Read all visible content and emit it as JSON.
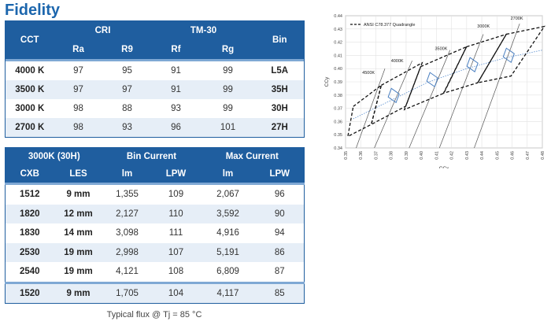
{
  "title": "Fidelity",
  "fidelity_table": {
    "head1": {
      "cct": "CCT",
      "cri": "CRI",
      "tm30": "TM-30",
      "bin": "Bin"
    },
    "head2": [
      "Ra",
      "R9",
      "Rf",
      "Rg"
    ],
    "rows": [
      {
        "cct": "4000 K",
        "ra": "97",
        "r9": "95",
        "rf": "91",
        "rg": "99",
        "bin": "L5A"
      },
      {
        "cct": "3500 K",
        "ra": "97",
        "r9": "97",
        "rf": "91",
        "rg": "99",
        "bin": "35H"
      },
      {
        "cct": "3000 K",
        "ra": "98",
        "r9": "88",
        "rf": "93",
        "rg": "99",
        "bin": "30H"
      },
      {
        "cct": "2700 K",
        "ra": "98",
        "r9": "93",
        "rf": "96",
        "rg": "101",
        "bin": "27H"
      }
    ]
  },
  "flux_table": {
    "head1": {
      "group": "3000K (30H)",
      "bin_current": "Bin Current",
      "max_current": "Max Current"
    },
    "head2": [
      "CXB",
      "LES",
      "lm",
      "LPW",
      "lm",
      "LPW"
    ],
    "rows": [
      {
        "cxb": "1512",
        "les": "9 mm",
        "bin_lm": "1,355",
        "bin_lpw": "109",
        "max_lm": "2,067",
        "max_lpw": "96"
      },
      {
        "cxb": "1820",
        "les": "12 mm",
        "bin_lm": "2,127",
        "bin_lpw": "110",
        "max_lm": "3,592",
        "max_lpw": "90"
      },
      {
        "cxb": "1830",
        "les": "14 mm",
        "bin_lm": "3,098",
        "bin_lpw": "111",
        "max_lm": "4,916",
        "max_lpw": "94"
      },
      {
        "cxb": "2530",
        "les": "19 mm",
        "bin_lm": "2,998",
        "bin_lpw": "107",
        "max_lm": "5,191",
        "max_lpw": "86"
      },
      {
        "cxb": "2540",
        "les": "19 mm",
        "bin_lm": "4,121",
        "bin_lpw": "108",
        "max_lm": "6,809",
        "max_lpw": "87"
      },
      {
        "cxb": "1520",
        "les": "9 mm",
        "bin_lm": "1,705",
        "bin_lpw": "104",
        "max_lm": "4,117",
        "max_lpw": "85"
      }
    ]
  },
  "footnote": "Typical flux @ Tj = 85 °C",
  "colors": {
    "header_bg": "#1f5e9f",
    "title": "#1c66ad",
    "row_alt": "#e6eef7",
    "bin_outline": "#4a7fc0"
  },
  "chart_data": {
    "type": "scatter",
    "xlabel": "CCx",
    "ylabel": "CCy",
    "xlim": [
      0.35,
      0.48
    ],
    "ylim": [
      0.34,
      0.44
    ],
    "xticks": [
      "0.35",
      "0.36",
      "0.37",
      "0.38",
      "0.39",
      "0.40",
      "0.41",
      "0.42",
      "0.43",
      "0.44",
      "0.45",
      "0.46",
      "0.47",
      "0.48"
    ],
    "yticks": [
      "0.34",
      "0.35",
      "0.36",
      "0.37",
      "0.38",
      "0.39",
      "0.40",
      "0.41",
      "0.42",
      "0.43",
      "0.44"
    ],
    "legend": "ANSI C78.377 Quadrangle",
    "legend_position": "top-left",
    "cct_labels": [
      {
        "text": "4500K",
        "x": 0.361,
        "y": 0.396
      },
      {
        "text": "4000K",
        "x": 0.38,
        "y": 0.405
      },
      {
        "text": "3500K",
        "x": 0.409,
        "y": 0.414
      },
      {
        "text": "3000K",
        "x": 0.437,
        "y": 0.431
      },
      {
        "text": "2700K",
        "x": 0.459,
        "y": 0.437
      }
    ],
    "quadrangles": [
      {
        "name": "4500K",
        "points": [
          [
            0.3551,
            0.3714
          ],
          [
            0.3736,
            0.3874
          ],
          [
            0.367,
            0.3578
          ],
          [
            0.3515,
            0.3487
          ]
        ]
      },
      {
        "name": "4000K",
        "points": [
          [
            0.3736,
            0.3874
          ],
          [
            0.4006,
            0.4044
          ],
          [
            0.3898,
            0.3716
          ],
          [
            0.367,
            0.3578
          ]
        ]
      },
      {
        "name": "3500K",
        "points": [
          [
            0.3996,
            0.4015
          ],
          [
            0.4299,
            0.4165
          ],
          [
            0.4149,
            0.3814
          ],
          [
            0.3889,
            0.369
          ]
        ]
      },
      {
        "name": "3000K",
        "points": [
          [
            0.4299,
            0.4165
          ],
          [
            0.4562,
            0.426
          ],
          [
            0.4373,
            0.3893
          ],
          [
            0.4147,
            0.3814
          ]
        ]
      },
      {
        "name": "2700K",
        "points": [
          [
            0.4562,
            0.426
          ],
          [
            0.4813,
            0.4319
          ],
          [
            0.4593,
            0.3944
          ],
          [
            0.4373,
            0.3893
          ]
        ]
      }
    ],
    "bins": [
      {
        "name": "4000K bin",
        "center": [
          0.3818,
          0.3797
        ]
      },
      {
        "name": "3500K bin",
        "center": [
          0.4073,
          0.3917
        ]
      },
      {
        "name": "3000K bin",
        "center": [
          0.4338,
          0.403
        ]
      },
      {
        "name": "2700K bin",
        "center": [
          0.4578,
          0.4101
        ]
      }
    ],
    "isotherm_lines": [
      {
        "name": "4500K",
        "from": [
          0.357,
          0.34
        ],
        "to": [
          0.376,
          0.4
        ]
      },
      {
        "name": "4000K",
        "from": [
          0.369,
          0.34
        ],
        "to": [
          0.394,
          0.406
        ]
      },
      {
        "name": "3500K",
        "from": [
          0.392,
          0.34
        ],
        "to": [
          0.419,
          0.414
        ]
      },
      {
        "name": "3000K",
        "from": [
          0.412,
          0.34
        ],
        "to": [
          0.441,
          0.426
        ]
      },
      {
        "name": "2700K",
        "from": [
          0.435,
          0.34
        ],
        "to": [
          0.465,
          0.434
        ]
      }
    ],
    "planckian_locus": [
      [
        0.355,
        0.362
      ],
      [
        0.38,
        0.376
      ],
      [
        0.405,
        0.39
      ],
      [
        0.43,
        0.4
      ],
      [
        0.455,
        0.408
      ],
      [
        0.48,
        0.414
      ]
    ]
  }
}
